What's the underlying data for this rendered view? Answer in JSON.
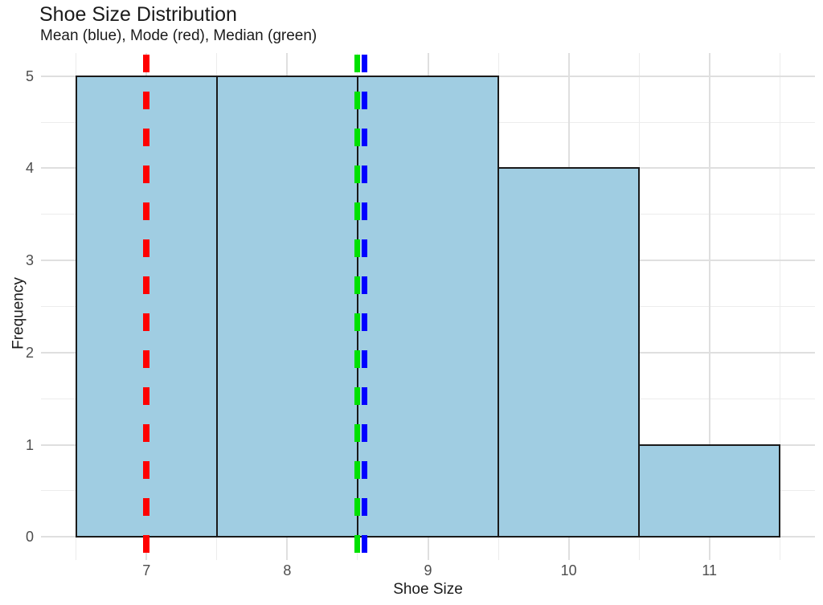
{
  "figure": {
    "title": "Shoe Size Distribution",
    "subtitle": "Mean (blue), Mode (red), Median (green)",
    "xlabel": "Shoe Size",
    "ylabel": "Frequency"
  },
  "chart_data": {
    "type": "bar",
    "subtype": "histogram",
    "title": "Shoe Size Distribution",
    "subtitle": "Mean (blue), Mode (red), Median (green)",
    "xlabel": "Shoe Size",
    "ylabel": "Frequency",
    "bins": [
      {
        "x0": 6.5,
        "x1": 7.5,
        "count": 5
      },
      {
        "x0": 7.5,
        "x1": 8.5,
        "count": 5
      },
      {
        "x0": 8.5,
        "x1": 9.5,
        "count": 5
      },
      {
        "x0": 9.5,
        "x1": 10.5,
        "count": 4
      },
      {
        "x0": 10.5,
        "x1": 11.5,
        "count": 1
      }
    ],
    "implied_value_counts": {
      "7": 5,
      "8": 5,
      "9": 5,
      "10": 4,
      "11": 1
    },
    "stats": {
      "mean": 8.55,
      "median": 8.5,
      "mode": 7
    },
    "vlines": [
      {
        "stat": "mode",
        "x": 7,
        "color": "#ff0000",
        "style": "dashed",
        "line_width": 8
      },
      {
        "stat": "median",
        "x": 8.5,
        "color": "#00e100",
        "style": "dashed",
        "line_width": 7
      },
      {
        "stat": "mean",
        "x": 8.55,
        "color": "#0000ff",
        "style": "dashed",
        "line_width": 7
      }
    ],
    "x_ticks": [
      7,
      8,
      9,
      10,
      11
    ],
    "y_ticks": [
      0,
      1,
      2,
      3,
      4,
      5
    ],
    "x_minor": [
      6.5,
      7.5,
      8.5,
      9.5,
      10.5,
      11.5
    ],
    "y_minor": [
      0.5,
      1.5,
      2.5,
      3.5,
      4.5
    ],
    "xlim": [
      6.25,
      11.75
    ],
    "ylim": [
      -0.25,
      5.25
    ],
    "grid": true,
    "legend": "none",
    "colors": {
      "bar_fill": "#a0cde2",
      "bar_border": "#1a1a1a",
      "grid_major": "#dfdfdf",
      "grid_minor": "#ececec",
      "axis_text": "#4d4d4d",
      "title_text": "#1b1b1b",
      "background": "#ffffff"
    }
  }
}
